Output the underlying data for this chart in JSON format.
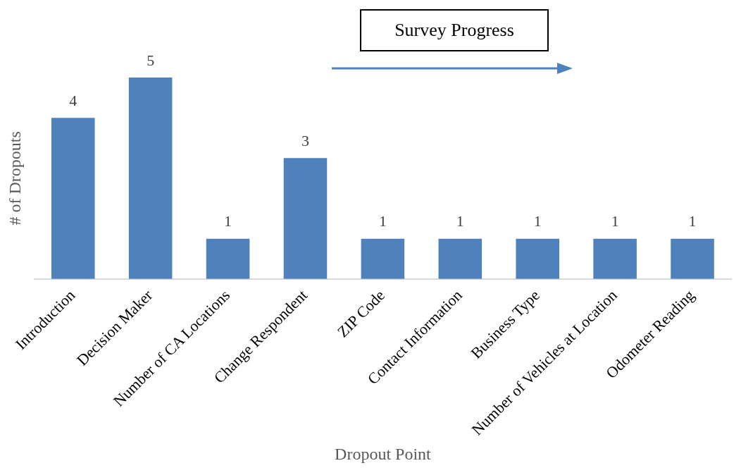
{
  "chart_data": {
    "type": "bar",
    "xlabel": "Dropout Point",
    "ylabel": "# of Dropouts",
    "categories": [
      "Introduction",
      "Decision Maker",
      "Number of CA Locations",
      "Change Respondent",
      "ZIP Code",
      "Contact Information",
      "Business Type",
      "Number of Vehicles at Location",
      "Odometer Reading"
    ],
    "values": [
      4,
      5,
      1,
      3,
      1,
      1,
      1,
      1,
      1
    ],
    "color": "#4f81bd",
    "data_labels": true,
    "annotations": [
      "Survey Progress"
    ]
  }
}
